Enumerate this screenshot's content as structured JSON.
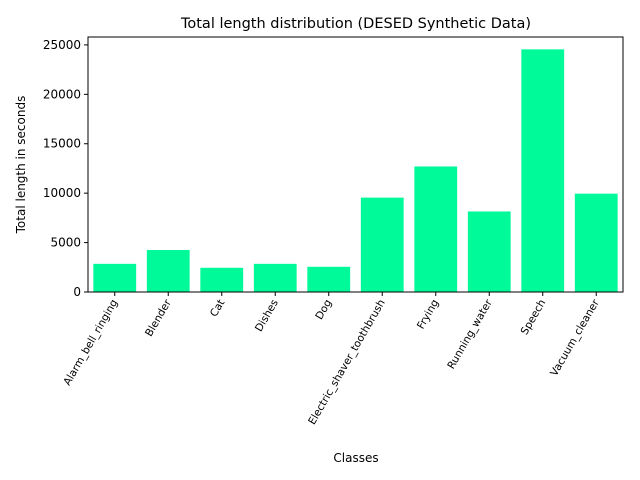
{
  "chart_data": {
    "type": "bar",
    "title": "Total length distribution (DESED Synthetic Data)",
    "xlabel": "Classes",
    "ylabel": "Total length in seconds",
    "categories": [
      "Alarm_bell_ringing",
      "Blender",
      "Cat",
      "Dishes",
      "Dog",
      "Electric_shaver_toothbrush",
      "Frying",
      "Running_water",
      "Speech",
      "Vacuum_cleaner"
    ],
    "values": [
      2850,
      4250,
      2450,
      2850,
      2550,
      9550,
      12700,
      8150,
      24550,
      9950
    ],
    "ylim": [
      0,
      25800
    ],
    "yticks": [
      0,
      5000,
      10000,
      15000,
      20000,
      25000
    ],
    "bar_color": "#00fa9a",
    "grid": false,
    "xtick_rotation": 60
  }
}
